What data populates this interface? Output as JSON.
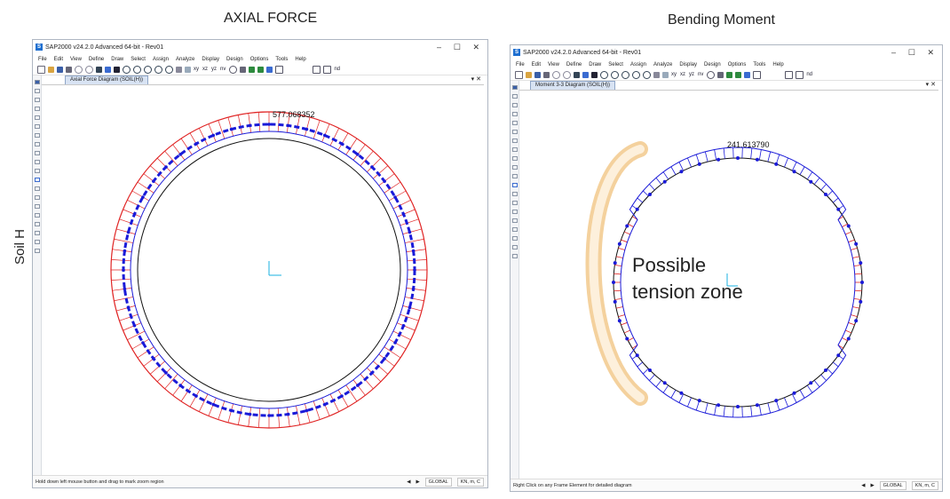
{
  "headings": {
    "left": "AXIAL FORCE",
    "right": "Bending Moment",
    "row_label": "Soil H"
  },
  "colors": {
    "positive_diagram": "#e02424",
    "negative_diagram": "#1a1ad8",
    "highlight": "#f2c98c",
    "axis": "#18b0e0"
  },
  "left_window": {
    "title": "SAP2000 v24.2.0 Advanced 64-bit - Rev01",
    "menu": [
      "File",
      "Edit",
      "View",
      "Define",
      "Draw",
      "Select",
      "Assign",
      "Analyze",
      "Display",
      "Design",
      "Options",
      "Tools",
      "Help"
    ],
    "toolbar_text": [
      "xy",
      "xz",
      "yz",
      "nv",
      "nd"
    ],
    "tab": "Axial Force Diagram (SOIL(H))",
    "value_label": "577.068352",
    "status_message": "Hold down left mouse button and drag to mark zoom region",
    "coord_system": "GLOBAL",
    "units": "KN, m, C"
  },
  "right_window": {
    "title": "SAP2000 v24.2.0 Advanced 64-bit - Rev01",
    "menu": [
      "File",
      "Edit",
      "View",
      "Define",
      "Draw",
      "Select",
      "Assign",
      "Analyze",
      "Display",
      "Design",
      "Options",
      "Tools",
      "Help"
    ],
    "toolbar_text": [
      "xy",
      "xz",
      "yz",
      "nv",
      "nd"
    ],
    "tab": "Moment 3-3 Diagram (SOIL(H))",
    "value_label": "241.613790",
    "status_message": "Right Click on any Frame Element for detailed diagram",
    "coord_system": "GLOBAL",
    "units": "KN, m, C",
    "annotation": [
      "Possible",
      "tension zone"
    ]
  },
  "icons": {
    "window_controls": [
      "minimize-icon",
      "maximize-icon",
      "close-icon"
    ],
    "nav": [
      "arrow-left-icon",
      "arrow-right-icon"
    ]
  }
}
